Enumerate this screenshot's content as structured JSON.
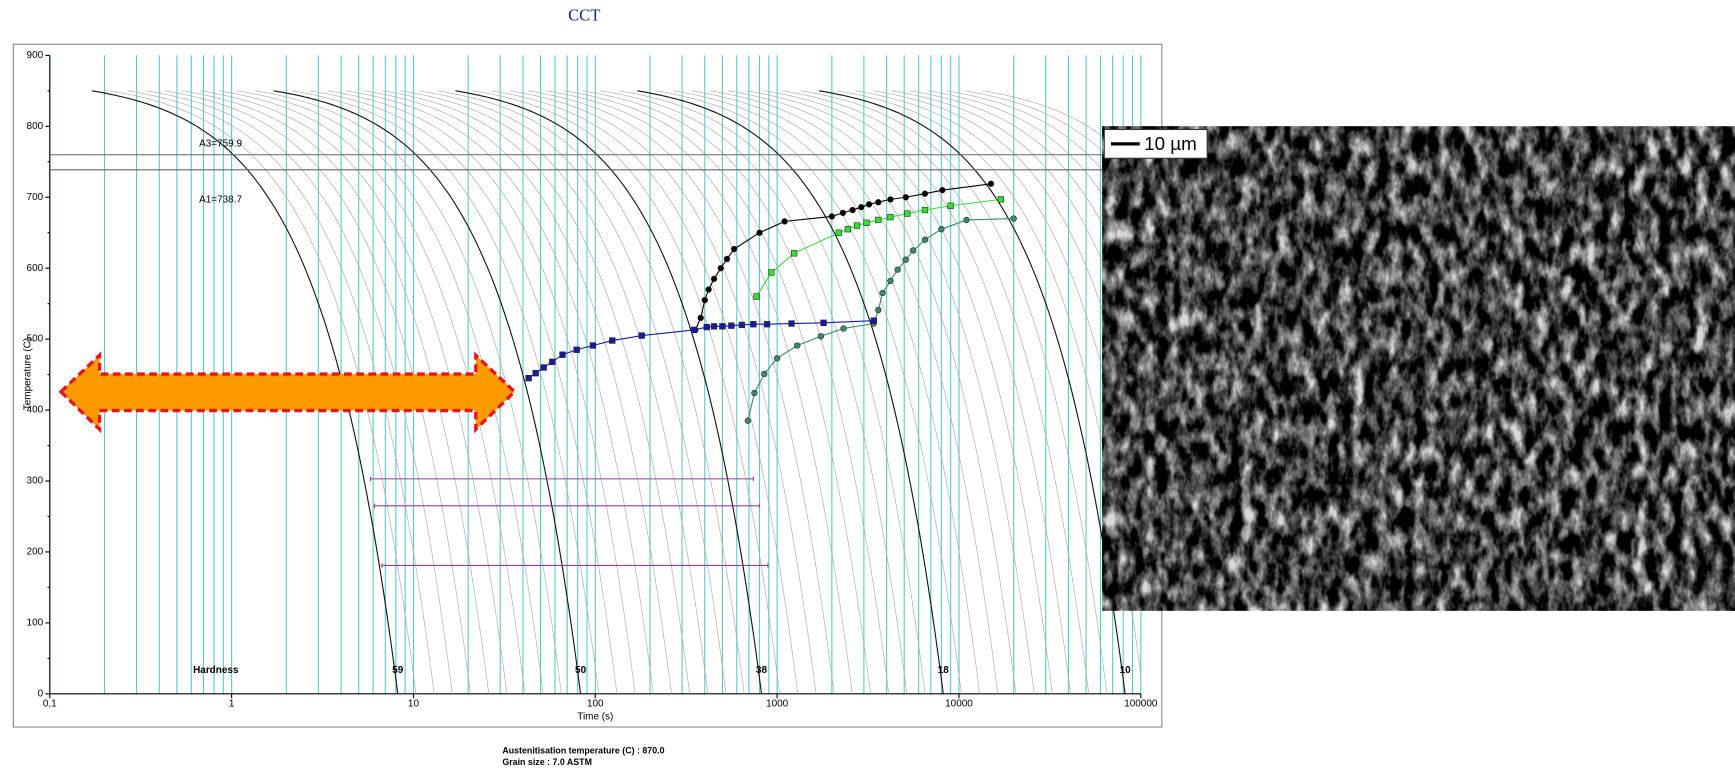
{
  "title": "CCT",
  "chart_data": {
    "type": "line",
    "x_label": "Time (s)",
    "y_label": "Temperature (C)",
    "xlim": [
      0.1,
      100000
    ],
    "ylim": [
      0,
      900
    ],
    "log_x": true,
    "grid": true,
    "xticks": [
      {
        "value": 0.1,
        "label": "0,1"
      },
      1,
      10,
      100,
      1000,
      10000,
      100000
    ],
    "yticks": [
      0,
      100,
      200,
      300,
      400,
      500,
      600,
      700,
      800,
      900
    ],
    "horizontal_lines": [
      {
        "value": 759.9,
        "label": "A3=759.9"
      },
      {
        "value": 738.7,
        "label": "A1=738.7"
      }
    ],
    "hardness_label": "Hardness",
    "cooling_start_temp": 850,
    "cooling_curves": [
      {
        "start_time": 0.17,
        "end_time": 8.2,
        "hardness": "59"
      },
      {
        "start_time": 1.7,
        "end_time": 83,
        "hardness": "50"
      },
      {
        "start_time": 17,
        "end_time": 820,
        "hardness": "38"
      },
      {
        "start_time": 170,
        "end_time": 8200,
        "hardness": "18"
      },
      {
        "start_time": 1700,
        "end_time": 82000,
        "hardness": "10"
      }
    ],
    "series": [
      {
        "color": "#000000",
        "marker": "circle",
        "x": [
          355,
          380,
          400,
          420,
          450,
          490,
          530,
          580,
          800,
          1100,
          2000,
          2300,
          2600,
          2900,
          3200,
          3600,
          4200,
          5100,
          6500,
          8100,
          15000
        ],
        "values": [
          513,
          530,
          555,
          570,
          585,
          600,
          613,
          627,
          650,
          666,
          673,
          678,
          682,
          686,
          690,
          693,
          697,
          700,
          705,
          710,
          719
        ]
      },
      {
        "color": "#33dd33",
        "marker": "square",
        "x": [
          770,
          930,
          1240,
          2180,
          2450,
          2750,
          3100,
          3600,
          4200,
          5200,
          6500,
          9000,
          17000
        ],
        "values": [
          560,
          594,
          621,
          650,
          655,
          660,
          664,
          668,
          672,
          677,
          682,
          688,
          697
        ]
      },
      {
        "color": "#3a8a6a",
        "marker": "circle",
        "x": [
          690,
          750,
          850,
          1000,
          1290,
          1740,
          2320,
          3400,
          3600,
          3800,
          4200,
          4600,
          5100,
          5600,
          6500,
          8000,
          11000,
          20000
        ],
        "values": [
          385,
          424,
          451,
          473,
          491,
          504,
          515,
          522,
          541,
          565,
          582,
          598,
          612,
          625,
          640,
          655,
          668,
          670
        ]
      },
      {
        "color": "#1a1aa0",
        "marker": "square",
        "x": [
          43,
          47,
          52,
          58,
          66,
          79,
          97,
          124,
          180,
          350,
          410,
          450,
          500,
          560,
          640,
          740,
          880,
          1200,
          1800,
          3400
        ],
        "values": [
          445,
          452,
          460,
          468,
          478,
          485,
          491,
          498,
          505,
          513,
          517,
          518,
          518,
          519,
          520,
          521,
          521,
          522,
          523,
          526
        ]
      },
      {
        "color": "#9a3a9a",
        "marker": "none",
        "x": [
          5.8,
          740
        ],
        "values": [
          303,
          303
        ]
      },
      {
        "color": "#9a3a9a",
        "marker": "none",
        "x": [
          6.1,
          800
        ],
        "values": [
          265,
          265
        ]
      },
      {
        "color": "#9a3a9a",
        "marker": "none",
        "x": [
          6.7,
          890
        ],
        "values": [
          181,
          181
        ]
      }
    ]
  },
  "footer": [
    "Austenitisation temperature (C) : 870.0",
    "Grain size : 7.0 ASTM"
  ],
  "micrograph": {
    "scale_bar": "10 µm"
  }
}
